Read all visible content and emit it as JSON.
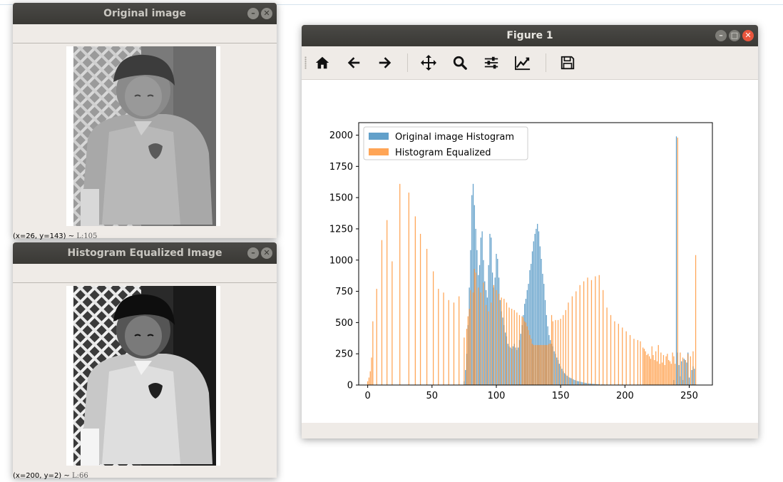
{
  "windows": {
    "original": {
      "title": "Original image",
      "status_coords": "(x=26, y=143) ~",
      "status_lum": "L:105"
    },
    "equalized": {
      "title": "Histogram Equalized Image",
      "status_coords": "(x=200, y=2) ~",
      "status_lum": "L:66"
    },
    "figure": {
      "title": "Figure 1",
      "toolbar": [
        {
          "name": "home-button",
          "icon": "home-icon"
        },
        {
          "name": "back-button",
          "icon": "arrow-left-icon"
        },
        {
          "name": "forward-button",
          "icon": "arrow-right-icon"
        },
        {
          "name": "pan-button",
          "icon": "move-icon"
        },
        {
          "name": "zoom-button",
          "icon": "magnifier-icon"
        },
        {
          "name": "subplots-button",
          "icon": "sliders-icon"
        },
        {
          "name": "edit-axis-button",
          "icon": "chart-line-icon"
        },
        {
          "name": "save-button",
          "icon": "floppy-icon"
        }
      ]
    }
  },
  "colors": {
    "series_original": "#1f77b4",
    "series_equalized": "#ff7f0e"
  },
  "chart_data": {
    "type": "bar",
    "title": "",
    "xlabel": "",
    "ylabel": "",
    "xlim": [
      -7,
      268
    ],
    "ylim": [
      0,
      2100
    ],
    "xticks": [
      0,
      50,
      100,
      150,
      200,
      250
    ],
    "yticks": [
      0,
      250,
      500,
      750,
      1000,
      1250,
      1500,
      1750,
      2000
    ],
    "legend_position": "upper-left",
    "series": [
      {
        "name": "Original image Histogram",
        "alpha": 0.7,
        "x": [
          75,
          76,
          77,
          78,
          79,
          80,
          81,
          82,
          83,
          84,
          85,
          86,
          87,
          88,
          89,
          90,
          91,
          92,
          93,
          94,
          95,
          96,
          97,
          98,
          99,
          100,
          101,
          102,
          103,
          104,
          105,
          106,
          107,
          108,
          109,
          110,
          111,
          112,
          113,
          114,
          115,
          116,
          117,
          118,
          119,
          120,
          121,
          122,
          123,
          124,
          125,
          126,
          127,
          128,
          129,
          130,
          131,
          132,
          133,
          134,
          135,
          136,
          137,
          138,
          139,
          140,
          141,
          142,
          143,
          144,
          145,
          146,
          147,
          148,
          149,
          150,
          151,
          152,
          153,
          154,
          155,
          156,
          157,
          158,
          159,
          160,
          161,
          162,
          163,
          164,
          165,
          166,
          167,
          168,
          169,
          170,
          171,
          172,
          173,
          174,
          175,
          176,
          177,
          178,
          179,
          180,
          182,
          184,
          186,
          188,
          190,
          192,
          194,
          196,
          198,
          200,
          205,
          210,
          215,
          220,
          225,
          230,
          235,
          238,
          240,
          241,
          242,
          243,
          244,
          245,
          246,
          247,
          248,
          249,
          250,
          252,
          253,
          254
        ],
        "y": [
          30,
          120,
          250,
          480,
          780,
          1080,
          1520,
          1610,
          1440,
          1250,
          1080,
          880,
          960,
          1180,
          1230,
          1000,
          830,
          760,
          700,
          960,
          1210,
          1180,
          900,
          780,
          860,
          1050,
          1010,
          860,
          680,
          590,
          540,
          480,
          420,
          390,
          330,
          310,
          300,
          290,
          310,
          330,
          300,
          280,
          300,
          360,
          410,
          480,
          560,
          650,
          690,
          760,
          810,
          920,
          970,
          1070,
          1150,
          1210,
          1250,
          1290,
          1230,
          1110,
          1010,
          890,
          810,
          680,
          560,
          470,
          400,
          360,
          330,
          310,
          270,
          250,
          220,
          200,
          170,
          150,
          130,
          110,
          95,
          85,
          75,
          65,
          60,
          55,
          50,
          45,
          40,
          35,
          32,
          30,
          28,
          25,
          22,
          20,
          18,
          16,
          15,
          13,
          12,
          11,
          10,
          9,
          8,
          7,
          6,
          5,
          5,
          4,
          4,
          3,
          3,
          3,
          3,
          3,
          3,
          2,
          2,
          2,
          2,
          2,
          2,
          2,
          2,
          40,
          1990,
          260,
          160,
          70,
          190,
          40,
          210,
          200,
          180,
          260,
          60,
          120,
          150,
          130
        ]
      },
      {
        "name": "Histogram Equalized",
        "alpha": 0.7,
        "x": [
          0,
          1,
          2,
          3,
          4,
          7,
          11,
          15,
          19,
          25,
          32,
          37,
          41,
          46,
          51,
          55,
          59,
          63,
          67,
          71,
          75,
          77,
          78,
          79,
          80,
          82,
          83,
          84,
          86,
          88,
          90,
          92,
          94,
          96,
          98,
          100,
          102,
          104,
          106,
          108,
          110,
          112,
          114,
          116,
          118,
          120,
          121,
          122,
          123,
          124,
          125,
          126,
          127,
          128,
          129,
          130,
          131,
          132,
          133,
          134,
          135,
          136,
          137,
          138,
          139,
          140,
          141,
          142,
          143,
          144,
          146,
          148,
          150,
          152,
          154,
          156,
          159,
          162,
          165,
          168,
          171,
          174,
          177,
          180,
          183,
          186,
          189,
          192,
          195,
          198,
          201,
          204,
          207,
          210,
          212,
          214,
          215,
          216,
          217,
          218,
          219,
          220,
          221,
          222,
          223,
          224,
          225,
          226,
          227,
          228,
          229,
          230,
          231,
          232,
          233,
          234,
          235,
          236,
          237,
          238,
          239,
          241,
          243,
          245,
          247,
          249,
          251,
          253,
          255
        ],
        "y": [
          30,
          60,
          110,
          220,
          510,
          770,
          1160,
          1320,
          990,
          1610,
          1540,
          1350,
          1210,
          1090,
          910,
          770,
          740,
          680,
          660,
          710,
          380,
          450,
          550,
          610,
          760,
          740,
          930,
          900,
          780,
          740,
          820,
          640,
          590,
          660,
          800,
          760,
          730,
          700,
          690,
          660,
          620,
          610,
          600,
          580,
          560,
          550,
          540,
          510,
          500,
          470,
          440,
          400,
          370,
          330,
          320,
          320,
          320,
          320,
          320,
          320,
          320,
          320,
          320,
          320,
          320,
          320,
          330,
          330,
          560,
          510,
          520,
          520,
          530,
          560,
          600,
          660,
          710,
          750,
          800,
          830,
          860,
          840,
          870,
          880,
          760,
          620,
          560,
          510,
          490,
          460,
          430,
          400,
          370,
          360,
          350,
          300,
          290,
          270,
          240,
          250,
          230,
          210,
          310,
          240,
          200,
          270,
          190,
          320,
          170,
          260,
          180,
          240,
          160,
          230,
          250,
          200,
          190,
          170,
          260,
          230,
          170,
          1980,
          260,
          220,
          200,
          250,
          230,
          270,
          1040
        ]
      }
    ]
  }
}
